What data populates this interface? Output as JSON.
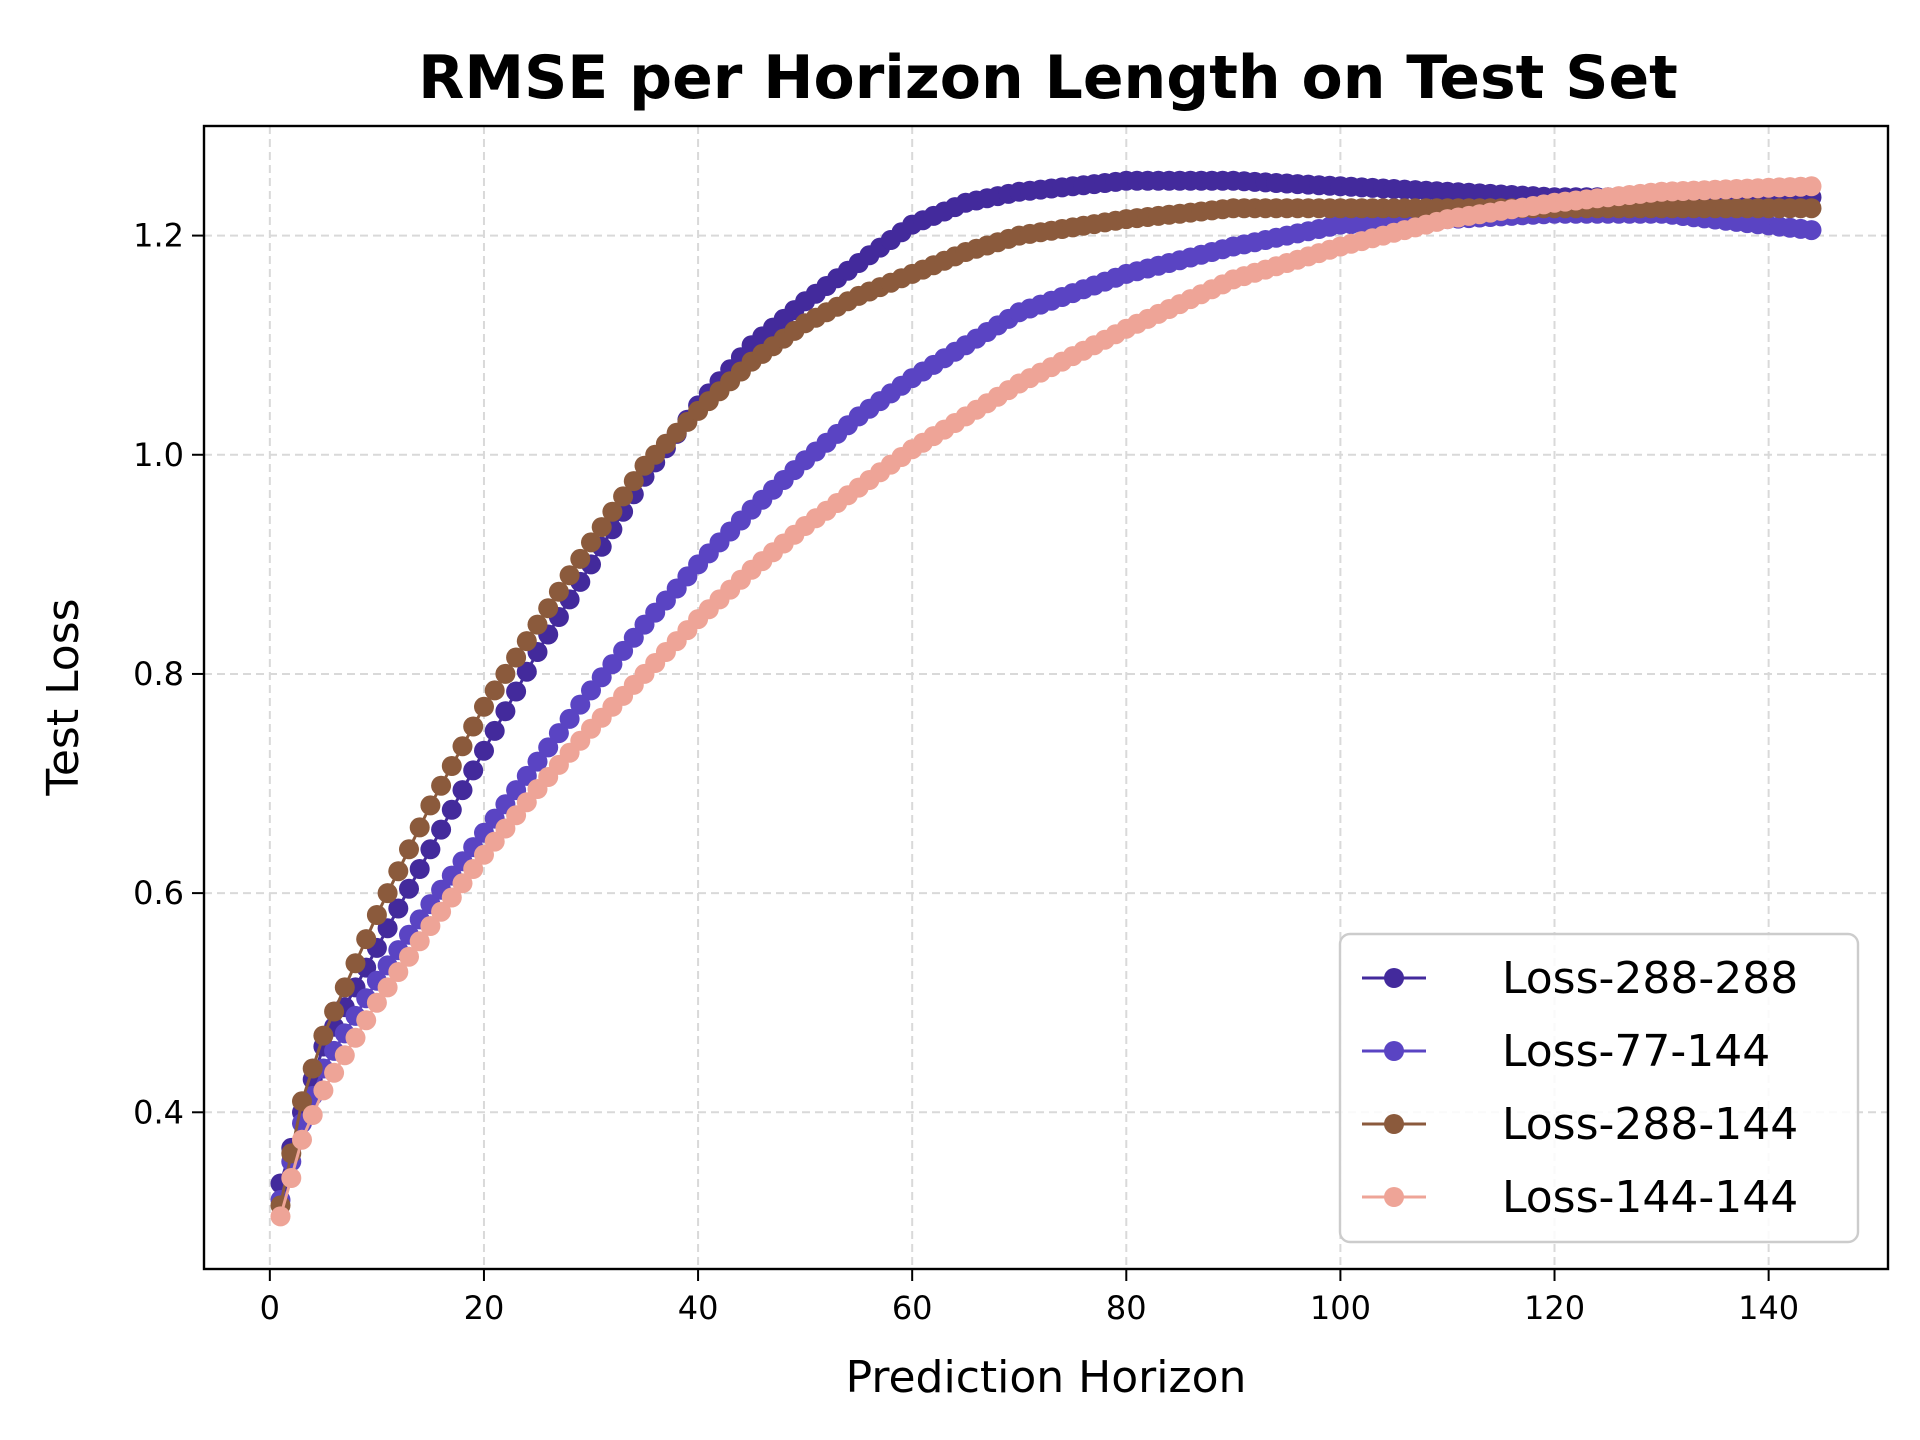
{
  "chart_data": {
    "type": "line",
    "title": "RMSE per Horizon Length on Test Set",
    "xlabel": "Prediction Horizon",
    "ylabel": "Test Loss",
    "xlim": [
      -6.15,
      151.15
    ],
    "ylim": [
      0.257,
      1.3
    ],
    "xticks": [
      0,
      20,
      40,
      60,
      80,
      100,
      120,
      140
    ],
    "yticks": [
      0.4,
      0.6,
      0.8,
      1.0,
      1.2
    ],
    "grid": true,
    "legend_position": "lower-right",
    "series": [
      {
        "name": "Loss-288-288",
        "color": "#432a9c",
        "points": [
          [
            1,
            0.335
          ],
          [
            3,
            0.4
          ],
          [
            5,
            0.46
          ],
          [
            10,
            0.55
          ],
          [
            15,
            0.64
          ],
          [
            20,
            0.73
          ],
          [
            25,
            0.82
          ],
          [
            30,
            0.9
          ],
          [
            35,
            0.98
          ],
          [
            40,
            1.045
          ],
          [
            45,
            1.1
          ],
          [
            50,
            1.14
          ],
          [
            55,
            1.175
          ],
          [
            60,
            1.21
          ],
          [
            65,
            1.23
          ],
          [
            70,
            1.24
          ],
          [
            80,
            1.25
          ],
          [
            90,
            1.25
          ],
          [
            100,
            1.245
          ],
          [
            110,
            1.24
          ],
          [
            120,
            1.235
          ],
          [
            130,
            1.235
          ],
          [
            144,
            1.235
          ]
        ]
      },
      {
        "name": "Loss-77-144",
        "color": "#5a44c3",
        "points": [
          [
            1,
            0.32
          ],
          [
            3,
            0.39
          ],
          [
            5,
            0.44
          ],
          [
            10,
            0.52
          ],
          [
            15,
            0.59
          ],
          [
            20,
            0.655
          ],
          [
            25,
            0.72
          ],
          [
            30,
            0.785
          ],
          [
            35,
            0.845
          ],
          [
            40,
            0.9
          ],
          [
            45,
            0.95
          ],
          [
            50,
            0.995
          ],
          [
            55,
            1.035
          ],
          [
            60,
            1.07
          ],
          [
            65,
            1.1
          ],
          [
            70,
            1.13
          ],
          [
            80,
            1.165
          ],
          [
            90,
            1.19
          ],
          [
            100,
            1.21
          ],
          [
            110,
            1.215
          ],
          [
            120,
            1.22
          ],
          [
            130,
            1.22
          ],
          [
            144,
            1.205
          ]
        ]
      },
      {
        "name": "Loss-288-144",
        "color": "#8b5a3c",
        "points": [
          [
            1,
            0.315
          ],
          [
            3,
            0.41
          ],
          [
            5,
            0.47
          ],
          [
            10,
            0.58
          ],
          [
            15,
            0.68
          ],
          [
            20,
            0.77
          ],
          [
            25,
            0.845
          ],
          [
            30,
            0.92
          ],
          [
            35,
            0.99
          ],
          [
            40,
            1.04
          ],
          [
            45,
            1.085
          ],
          [
            50,
            1.12
          ],
          [
            55,
            1.145
          ],
          [
            60,
            1.165
          ],
          [
            65,
            1.185
          ],
          [
            70,
            1.2
          ],
          [
            80,
            1.215
          ],
          [
            90,
            1.225
          ],
          [
            100,
            1.225
          ],
          [
            110,
            1.225
          ],
          [
            120,
            1.225
          ],
          [
            130,
            1.225
          ],
          [
            144,
            1.225
          ]
        ]
      },
      {
        "name": "Loss-144-144",
        "color": "#eea497",
        "points": [
          [
            1,
            0.305
          ],
          [
            3,
            0.375
          ],
          [
            5,
            0.42
          ],
          [
            10,
            0.5
          ],
          [
            15,
            0.57
          ],
          [
            20,
            0.635
          ],
          [
            25,
            0.695
          ],
          [
            30,
            0.75
          ],
          [
            35,
            0.8
          ],
          [
            40,
            0.85
          ],
          [
            45,
            0.895
          ],
          [
            50,
            0.935
          ],
          [
            55,
            0.97
          ],
          [
            60,
            1.005
          ],
          [
            65,
            1.035
          ],
          [
            70,
            1.065
          ],
          [
            80,
            1.115
          ],
          [
            90,
            1.16
          ],
          [
            100,
            1.19
          ],
          [
            110,
            1.215
          ],
          [
            120,
            1.23
          ],
          [
            130,
            1.24
          ],
          [
            144,
            1.245
          ]
        ]
      }
    ]
  }
}
